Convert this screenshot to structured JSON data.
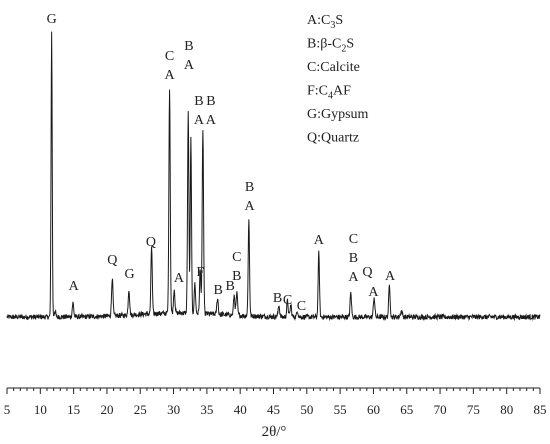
{
  "chart_data": {
    "type": "line",
    "xlabel": "2θ/°",
    "ylabel": "",
    "xlim": [
      5,
      85
    ],
    "xticks": [
      5,
      10,
      15,
      20,
      25,
      30,
      35,
      40,
      45,
      50,
      55,
      60,
      65,
      70,
      75,
      80,
      85
    ],
    "grid": false,
    "legend_position": "top-right",
    "legend": [
      {
        "key": "A",
        "text": "A:C",
        "sub": "3",
        "tail": "S"
      },
      {
        "key": "B",
        "text": "B:β-C",
        "sub": "2",
        "tail": "S"
      },
      {
        "key": "C",
        "text": "C:Calcite",
        "sub": "",
        "tail": ""
      },
      {
        "key": "F",
        "text": "F:C",
        "sub": "4",
        "tail": "AF"
      },
      {
        "key": "G",
        "text": "G:Gypsum",
        "sub": "",
        "tail": ""
      },
      {
        "key": "Q",
        "text": "Q:Quartz",
        "sub": "",
        "tail": ""
      }
    ],
    "baseline": 5,
    "peaks": [
      {
        "x": 11.7,
        "h": 285,
        "w": 0.12
      },
      {
        "x": 12.2,
        "h": 6,
        "w": 0.15
      },
      {
        "x": 14.9,
        "h": 14,
        "w": 0.15
      },
      {
        "x": 20.8,
        "h": 38,
        "w": 0.15
      },
      {
        "x": 23.3,
        "h": 26,
        "w": 0.15
      },
      {
        "x": 26.7,
        "h": 68,
        "w": 0.14
      },
      {
        "x": 29.4,
        "h": 226,
        "w": 0.14
      },
      {
        "x": 30.1,
        "h": 24,
        "w": 0.15
      },
      {
        "x": 32.2,
        "h": 200,
        "w": 0.14
      },
      {
        "x": 32.6,
        "h": 175,
        "w": 0.13
      },
      {
        "x": 33.2,
        "h": 30,
        "w": 0.14
      },
      {
        "x": 34.0,
        "h": 44,
        "w": 0.14
      },
      {
        "x": 34.4,
        "h": 185,
        "w": 0.14
      },
      {
        "x": 36.6,
        "h": 16,
        "w": 0.15
      },
      {
        "x": 39.1,
        "h": 20,
        "w": 0.15
      },
      {
        "x": 39.5,
        "h": 22,
        "w": 0.15
      },
      {
        "x": 41.3,
        "h": 96,
        "w": 0.14
      },
      {
        "x": 45.8,
        "h": 12,
        "w": 0.15
      },
      {
        "x": 47.1,
        "h": 16,
        "w": 0.15
      },
      {
        "x": 47.6,
        "h": 12,
        "w": 0.15
      },
      {
        "x": 48.6,
        "h": 6,
        "w": 0.15
      },
      {
        "x": 51.8,
        "h": 64,
        "w": 0.14
      },
      {
        "x": 56.6,
        "h": 24,
        "w": 0.15
      },
      {
        "x": 60.1,
        "h": 20,
        "w": 0.15
      },
      {
        "x": 62.4,
        "h": 32,
        "w": 0.15
      },
      {
        "x": 64.2,
        "h": 6,
        "w": 0.2
      }
    ],
    "peak_labels": [
      {
        "x": 11.7,
        "y": 299,
        "lines": [
          "G"
        ]
      },
      {
        "x": 15.0,
        "y": 32,
        "lines": [
          "A"
        ]
      },
      {
        "x": 20.8,
        "y": 58,
        "lines": [
          "Q"
        ]
      },
      {
        "x": 23.4,
        "y": 44,
        "lines": [
          "G"
        ]
      },
      {
        "x": 26.6,
        "y": 76,
        "lines": [
          "Q"
        ]
      },
      {
        "x": 29.4,
        "y": 243,
        "lines": [
          "C",
          "A"
        ]
      },
      {
        "x": 30.8,
        "y": 40,
        "lines": [
          "A"
        ]
      },
      {
        "x": 32.3,
        "y": 253,
        "lines": [
          "B",
          "A"
        ]
      },
      {
        "x": 33.8,
        "y": 198,
        "lines": [
          "B",
          "A"
        ]
      },
      {
        "x": 35.6,
        "y": 198,
        "lines": [
          "B",
          "A"
        ]
      },
      {
        "x": 34.0,
        "y": 46,
        "lines": [
          "F"
        ]
      },
      {
        "x": 36.7,
        "y": 28,
        "lines": [
          "B"
        ]
      },
      {
        "x": 38.5,
        "y": 32,
        "lines": [
          "B"
        ]
      },
      {
        "x": 39.5,
        "y": 42,
        "lines": [
          "C",
          "B"
        ]
      },
      {
        "x": 41.4,
        "y": 112,
        "lines": [
          "B",
          "A"
        ]
      },
      {
        "x": 45.6,
        "y": 20,
        "lines": [
          "B"
        ]
      },
      {
        "x": 47.1,
        "y": 18,
        "lines": [
          "C"
        ]
      },
      {
        "x": 49.2,
        "y": 12,
        "lines": [
          "C"
        ]
      },
      {
        "x": 51.8,
        "y": 78,
        "lines": [
          "A"
        ]
      },
      {
        "x": 57.0,
        "y": 41,
        "lines": [
          "C",
          "B",
          "A"
        ]
      },
      {
        "x": 59.1,
        "y": 46,
        "lines": [
          "Q"
        ]
      },
      {
        "x": 60.0,
        "y": 26,
        "lines": [
          "A"
        ]
      },
      {
        "x": 62.5,
        "y": 42,
        "lines": [
          "A"
        ]
      }
    ]
  }
}
